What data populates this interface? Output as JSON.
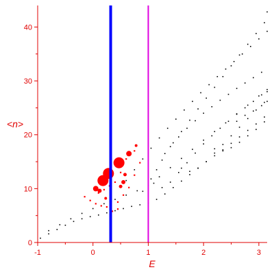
{
  "chart_data": {
    "type": "scatter",
    "title": "",
    "xlabel": "E",
    "ylabel": "<n>",
    "xlim": [
      -1,
      3.15
    ],
    "ylim": [
      0,
      44
    ],
    "xticks": [
      -1,
      0,
      1,
      2,
      3
    ],
    "yticks": [
      0,
      10,
      20,
      30,
      40
    ],
    "grid": false,
    "colors": {
      "axis": "#e00000",
      "points": "#000000",
      "highlight": "#ff0000",
      "line_blue": "#0000ff",
      "line_magenta": "#e000e0"
    },
    "vertical_lines": [
      {
        "x": 0.32,
        "color": "#0000ff",
        "width": 4
      },
      {
        "x": 1.0,
        "color": "#e000e0",
        "width": 2
      }
    ],
    "black_points_note": "dense curved point families; each series lists [E, <n>] samples",
    "series": [
      {
        "color": "#000000",
        "points": [
          [
            -0.95,
            0.8
          ],
          [
            -0.8,
            1.6
          ],
          [
            -0.65,
            2.4
          ],
          [
            -0.5,
            3.2
          ],
          [
            -0.35,
            3.9
          ],
          [
            -0.2,
            4.4
          ],
          [
            -0.05,
            4.8
          ],
          [
            0.1,
            5.1
          ],
          [
            0.25,
            5.5
          ],
          [
            0.4,
            5.9
          ],
          [
            0.55,
            6.3
          ],
          [
            0.7,
            6.7
          ],
          [
            0.85,
            7.0
          ],
          [
            1.0,
            7.3
          ],
          [
            1.15,
            8.0
          ],
          [
            1.3,
            9.0
          ],
          [
            1.45,
            10.2
          ],
          [
            1.6,
            11.4
          ],
          [
            1.75,
            12.6
          ],
          [
            1.9,
            13.8
          ],
          [
            2.05,
            15.0
          ],
          [
            2.2,
            16.1
          ],
          [
            2.35,
            17.2
          ],
          [
            2.5,
            18.4
          ],
          [
            2.65,
            19.6
          ],
          [
            2.8,
            20.8
          ],
          [
            2.95,
            22.0
          ],
          [
            3.1,
            23.3
          ]
        ]
      },
      {
        "color": "#000000",
        "points": [
          [
            -0.8,
            2.2
          ],
          [
            -0.6,
            3.3
          ],
          [
            -0.4,
            4.4
          ],
          [
            -0.2,
            5.4
          ],
          [
            0.0,
            6.3
          ],
          [
            0.2,
            7.2
          ],
          [
            0.4,
            8.0
          ],
          [
            0.6,
            8.8
          ],
          [
            0.8,
            9.6
          ],
          [
            1.0,
            10.6
          ],
          [
            1.2,
            12.2
          ],
          [
            1.4,
            13.9
          ],
          [
            1.6,
            15.6
          ],
          [
            1.8,
            17.3
          ],
          [
            2.0,
            19.0
          ],
          [
            2.2,
            20.6
          ],
          [
            2.4,
            22.2
          ],
          [
            2.6,
            23.9
          ],
          [
            2.8,
            25.5
          ],
          [
            3.0,
            27.2
          ],
          [
            3.15,
            28.4
          ]
        ]
      },
      {
        "color": "#000000",
        "points": [
          [
            0.6,
            11.5
          ],
          [
            0.75,
            13.5
          ],
          [
            0.9,
            15.5
          ],
          [
            1.05,
            17.5
          ],
          [
            1.2,
            19.4
          ],
          [
            1.35,
            21.2
          ],
          [
            1.5,
            22.9
          ],
          [
            1.65,
            24.6
          ],
          [
            1.8,
            26.2
          ],
          [
            1.95,
            27.8
          ],
          [
            2.1,
            29.3
          ],
          [
            2.25,
            30.8
          ],
          [
            2.4,
            32.2
          ],
          [
            2.55,
            33.6
          ],
          [
            2.7,
            35.0
          ],
          [
            2.85,
            36.4
          ],
          [
            3.0,
            37.8
          ],
          [
            3.15,
            39.2
          ]
        ]
      },
      {
        "color": "#000000",
        "points": [
          [
            1.3,
            16.5
          ],
          [
            1.45,
            18.5
          ],
          [
            1.6,
            20.6
          ],
          [
            1.75,
            22.7
          ],
          [
            1.9,
            24.8
          ],
          [
            2.05,
            26.8
          ],
          [
            2.2,
            28.8
          ],
          [
            2.35,
            30.8
          ],
          [
            2.5,
            32.8
          ],
          [
            2.65,
            34.8
          ],
          [
            2.8,
            36.8
          ],
          [
            2.95,
            38.8
          ],
          [
            3.1,
            40.8
          ],
          [
            3.15,
            42.8
          ]
        ]
      },
      {
        "color": "#000000",
        "points": [
          [
            1.1,
            11.0
          ],
          [
            1.25,
            10.2
          ],
          [
            1.4,
            11.2
          ],
          [
            1.55,
            13.0
          ],
          [
            1.7,
            14.8
          ],
          [
            1.85,
            16.6
          ],
          [
            2.0,
            18.3
          ],
          [
            2.15,
            19.8
          ],
          [
            2.3,
            21.2
          ],
          [
            2.45,
            22.5
          ],
          [
            2.6,
            23.8
          ],
          [
            2.75,
            25.0
          ],
          [
            2.9,
            26.2
          ],
          [
            3.05,
            27.4
          ],
          [
            3.15,
            28.0
          ]
        ]
      },
      {
        "color": "#000000",
        "points": [
          [
            1.6,
            13.8
          ],
          [
            1.75,
            13.2
          ],
          [
            1.9,
            13.8
          ],
          [
            2.05,
            15.0
          ],
          [
            2.2,
            16.6
          ],
          [
            2.35,
            18.2
          ],
          [
            2.5,
            19.8
          ],
          [
            2.65,
            21.4
          ],
          [
            2.8,
            23.0
          ],
          [
            2.95,
            24.6
          ],
          [
            3.1,
            26.0
          ]
        ]
      },
      {
        "color": "#000000",
        "points": [
          [
            2.2,
            17.4
          ],
          [
            2.35,
            17.0
          ],
          [
            2.5,
            17.6
          ],
          [
            2.65,
            18.6
          ],
          [
            2.8,
            19.8
          ],
          [
            2.95,
            21.0
          ],
          [
            3.1,
            22.4
          ]
        ]
      },
      {
        "color": "#000000",
        "points": [
          [
            2.6,
            22.5
          ],
          [
            2.75,
            23.6
          ],
          [
            2.9,
            24.4
          ],
          [
            3.05,
            25.4
          ],
          [
            3.15,
            26.2
          ]
        ]
      },
      {
        "color": "#000000",
        "points": [
          [
            0.9,
            9.5
          ],
          [
            1.05,
            11.8
          ],
          [
            1.15,
            13.5
          ],
          [
            1.25,
            15.3
          ],
          [
            1.4,
            17.8
          ],
          [
            1.55,
            19.6
          ],
          [
            1.7,
            21.2
          ],
          [
            1.85,
            22.6
          ],
          [
            2.0,
            24.0
          ],
          [
            2.15,
            25.2
          ],
          [
            2.3,
            26.4
          ],
          [
            2.45,
            27.5
          ],
          [
            2.6,
            28.6
          ],
          [
            2.75,
            29.6
          ],
          [
            2.9,
            30.6
          ],
          [
            3.05,
            31.6
          ]
        ]
      },
      {
        "color": "#ff0000",
        "points": [
          [
            -0.15,
            8.5
          ],
          [
            -0.05,
            7.8
          ],
          [
            0.05,
            7.2
          ],
          [
            0.15,
            6.8
          ],
          [
            0.25,
            6.6
          ],
          [
            0.45,
            7.5
          ],
          [
            0.55,
            8.8
          ],
          [
            0.65,
            10.2
          ],
          [
            0.75,
            12.5
          ],
          [
            0.85,
            14.8
          ],
          [
            0.75,
            17.0
          ],
          [
            0.6,
            15.5
          ],
          [
            0.5,
            13.0
          ],
          [
            0.4,
            11.2
          ],
          [
            0.3,
            10.5
          ],
          [
            0.2,
            9.8
          ],
          [
            0.1,
            9.2
          ],
          [
            0.45,
            6.2
          ],
          [
            0.35,
            5.8
          ]
        ]
      }
    ],
    "highlight_points": [
      {
        "x": 0.28,
        "y": 12.8,
        "r": 8
      },
      {
        "x": 0.47,
        "y": 14.8,
        "r": 8
      },
      {
        "x": 0.18,
        "y": 11.5,
        "r": 8
      },
      {
        "x": 0.65,
        "y": 16.5,
        "r": 4
      },
      {
        "x": 0.05,
        "y": 10.0,
        "r": 4
      },
      {
        "x": 0.12,
        "y": 9.6,
        "r": 3
      },
      {
        "x": 0.55,
        "y": 11.2,
        "r": 3
      },
      {
        "x": 0.5,
        "y": 10.4,
        "r": 2.5
      },
      {
        "x": 0.58,
        "y": 12.6,
        "r": 2.5
      },
      {
        "x": 0.78,
        "y": 18.0,
        "r": 2
      },
      {
        "x": 0.23,
        "y": 8.2,
        "r": 2
      },
      {
        "x": 0.32,
        "y": 7.6,
        "r": 2
      }
    ]
  }
}
